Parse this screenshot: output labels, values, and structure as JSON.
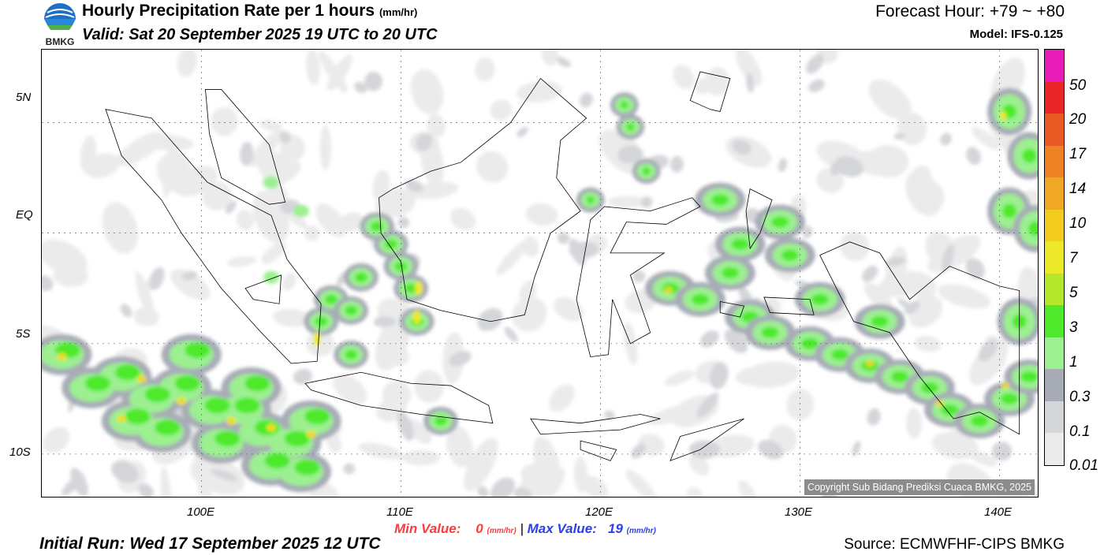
{
  "header": {
    "logo_text": "BMKG",
    "title": "Hourly Precipitation Rate per 1 hours",
    "title_unit": "(mm/hr)",
    "valid": "Valid: Sat 20 September 2025 19 UTC to 20 UTC",
    "forecast_hour": "Forecast Hour: +79 ~ +80",
    "model": "Model: IFS-0.125"
  },
  "map": {
    "lat_labels": [
      "5N",
      "EQ",
      "5S",
      "10S"
    ],
    "lon_labels": [
      "100E",
      "110E",
      "120E",
      "130E",
      "140E"
    ],
    "copyright": "Copyright Sub Bidang Prediksi Cuaca BMKG, 2025",
    "lat_range": [
      -12,
      8.3
    ],
    "lon_range": [
      92,
      142
    ]
  },
  "colorbar": {
    "labels": [
      "50",
      "20",
      "17",
      "14",
      "10",
      "7",
      "5",
      "3",
      "1",
      "0.3",
      "0.1",
      "0.01"
    ],
    "colors": [
      "#e81cb8",
      "#e8262a",
      "#ea5a25",
      "#ef8224",
      "#f0a824",
      "#f2cd1f",
      "#ece92a",
      "#b6e629",
      "#4ee92b",
      "#9cf090",
      "#a7acb6",
      "#d4d6da",
      "#ebebeb"
    ]
  },
  "stats": {
    "min_label": "Min Value:",
    "min_value": "0",
    "max_label": "Max Value:",
    "max_value": "19",
    "unit": "(mm/hr)",
    "separator": "|"
  },
  "footer": {
    "initial_run": "Initial Run: Wed 17 September 2025 12 UTC",
    "source": "Source: ECMWFHF-CIPS BMKG"
  }
}
